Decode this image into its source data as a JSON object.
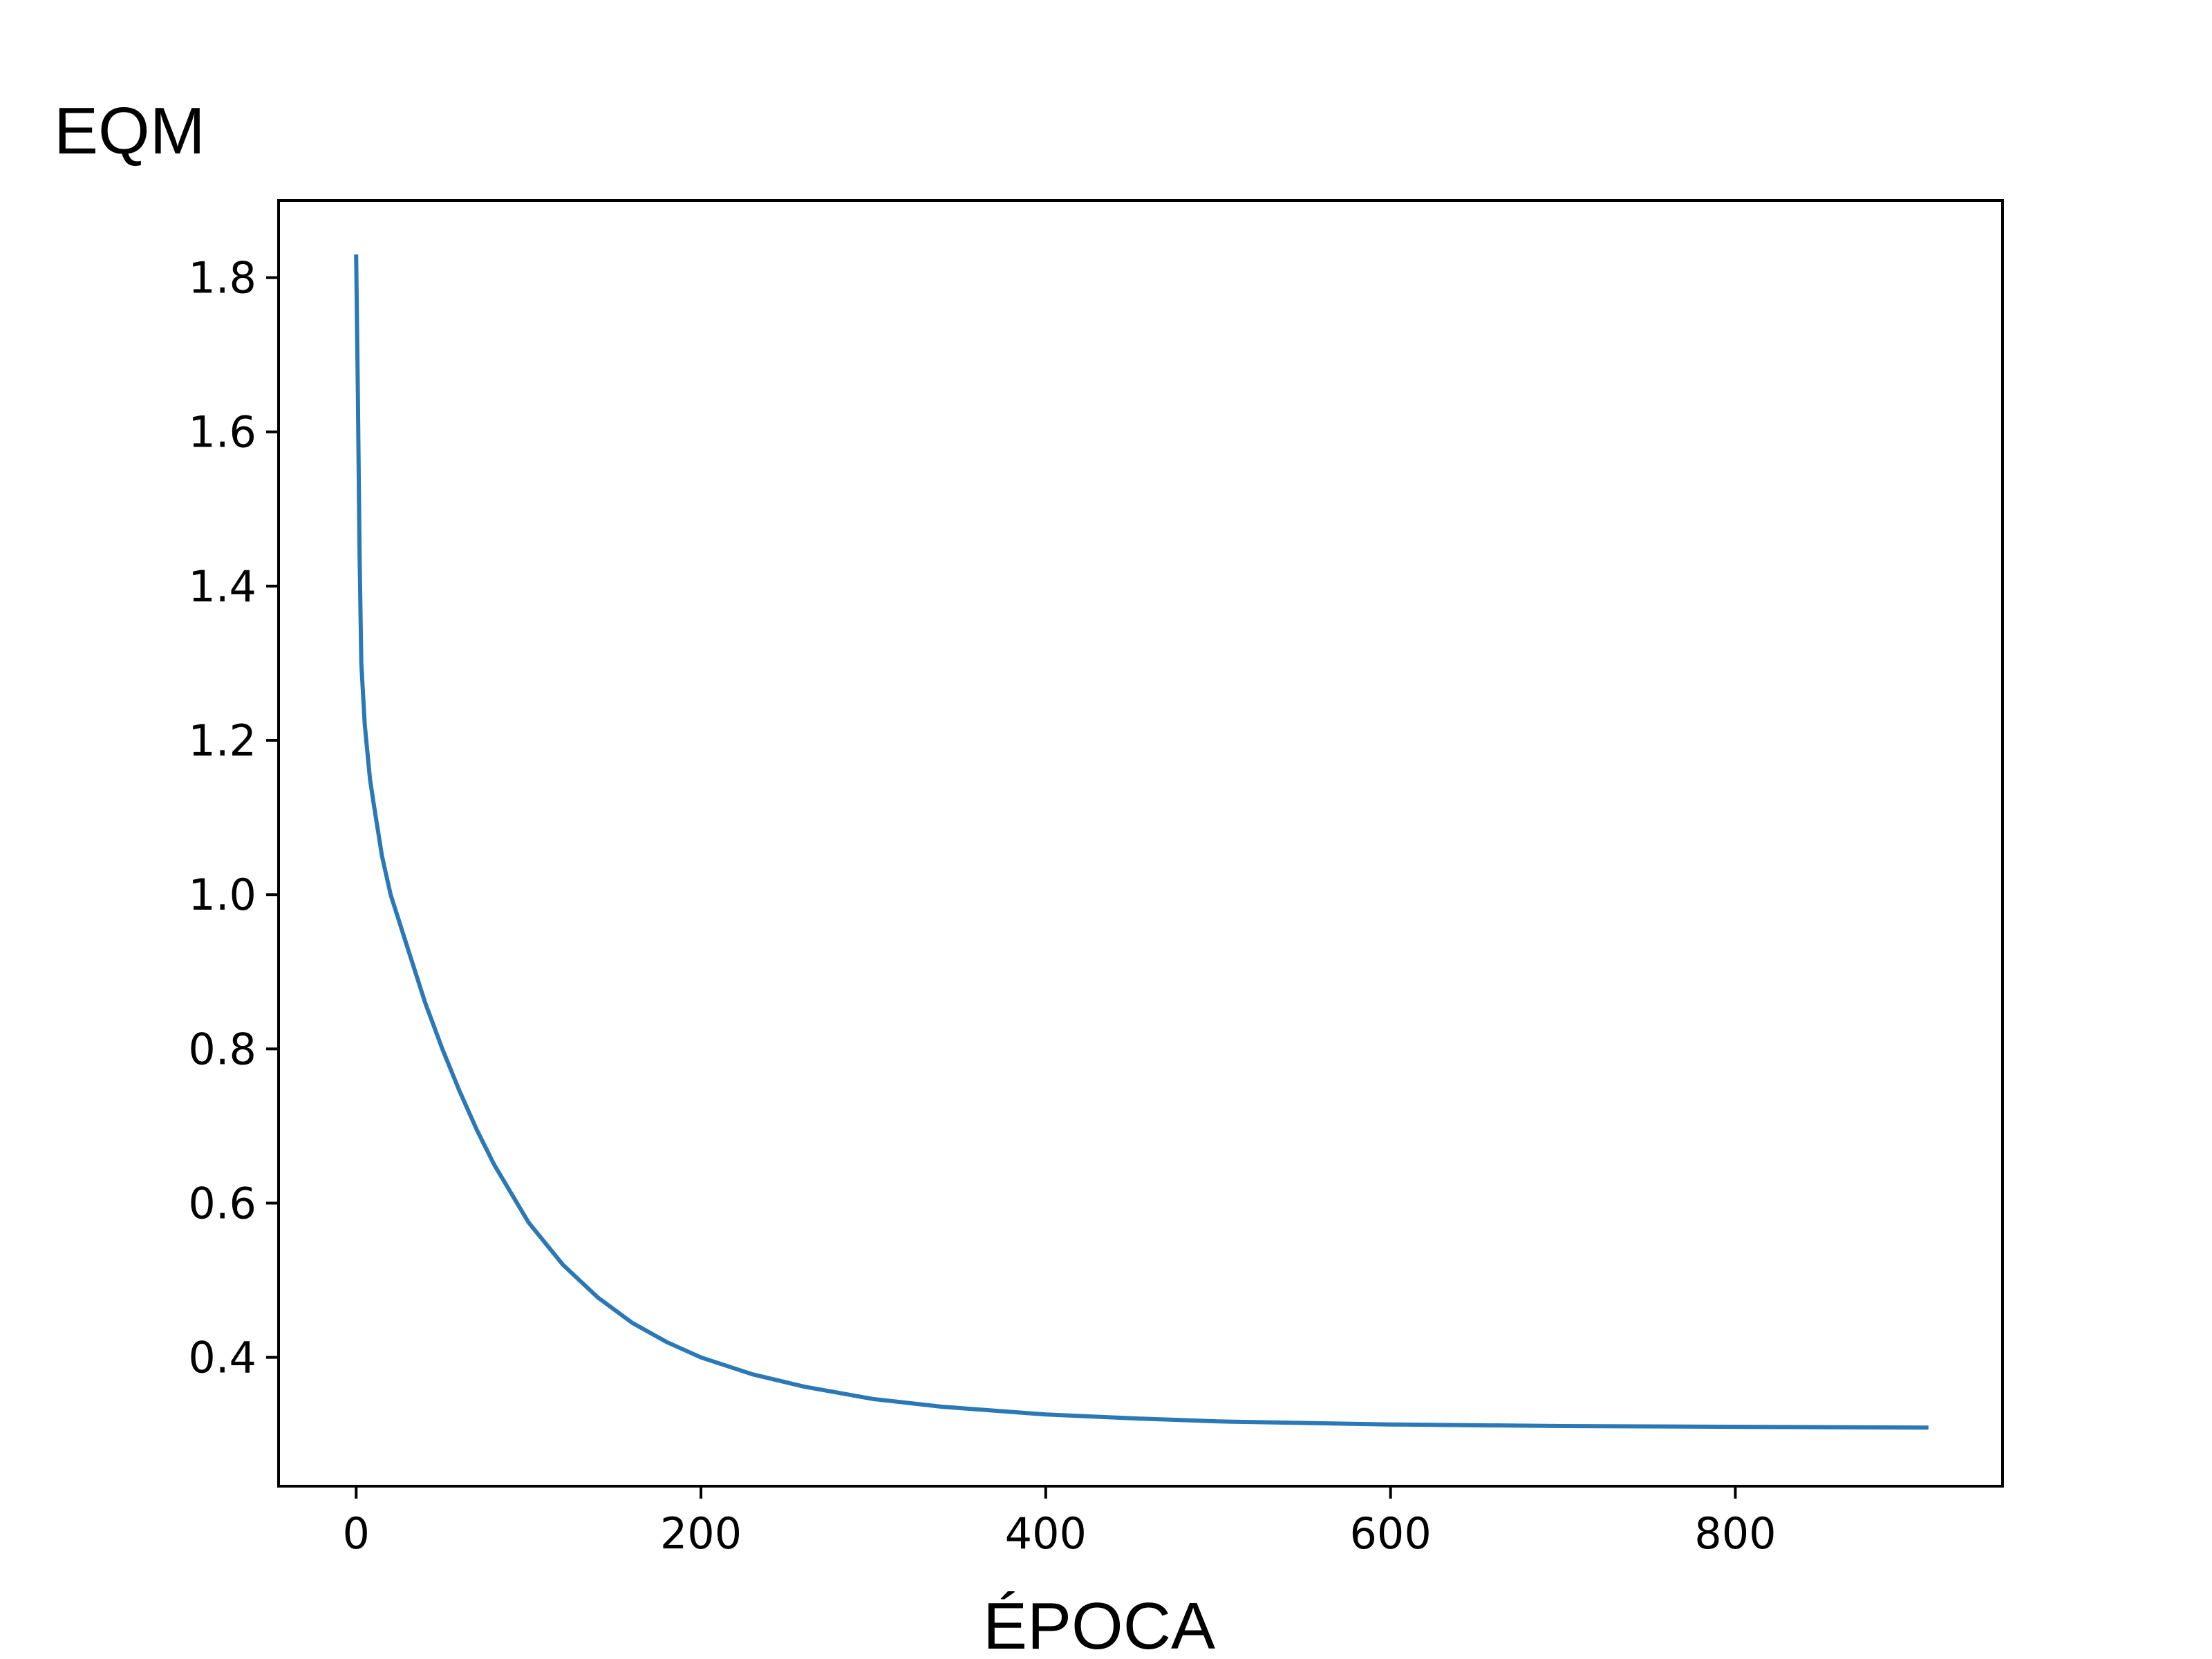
{
  "chart_data": {
    "type": "line",
    "ylabel": "EQM",
    "xlabel": "ÉPOCA",
    "title": "",
    "xlim": [
      -45,
      955
    ],
    "ylim": [
      0.233,
      1.9
    ],
    "x_ticks": [
      0,
      200,
      400,
      600,
      800
    ],
    "x_tick_labels": [
      "0",
      "200",
      "400",
      "600",
      "800"
    ],
    "y_ticks": [
      0.4,
      0.6,
      0.8,
      1.0,
      1.2,
      1.4,
      1.6,
      1.8
    ],
    "y_tick_labels": [
      "0.4",
      "0.6",
      "0.8",
      "1.0",
      "1.2",
      "1.4",
      "1.6",
      "1.8"
    ],
    "grid": false,
    "line_color": "#2a78b5",
    "series": [
      {
        "x": [
          0,
          1,
          2,
          3,
          5,
          8,
          10,
          15,
          20,
          30,
          40,
          50,
          60,
          70,
          80,
          100,
          120,
          140,
          160,
          180,
          200,
          230,
          260,
          300,
          340,
          400,
          450,
          500,
          600,
          700,
          800,
          912
        ],
        "values": [
          1.83,
          1.65,
          1.44,
          1.3,
          1.22,
          1.15,
          1.12,
          1.05,
          1.0,
          0.93,
          0.86,
          0.8,
          0.745,
          0.695,
          0.65,
          0.575,
          0.52,
          0.478,
          0.445,
          0.42,
          0.4,
          0.378,
          0.362,
          0.346,
          0.336,
          0.326,
          0.321,
          0.317,
          0.313,
          0.311,
          0.31,
          0.309
        ]
      }
    ]
  }
}
